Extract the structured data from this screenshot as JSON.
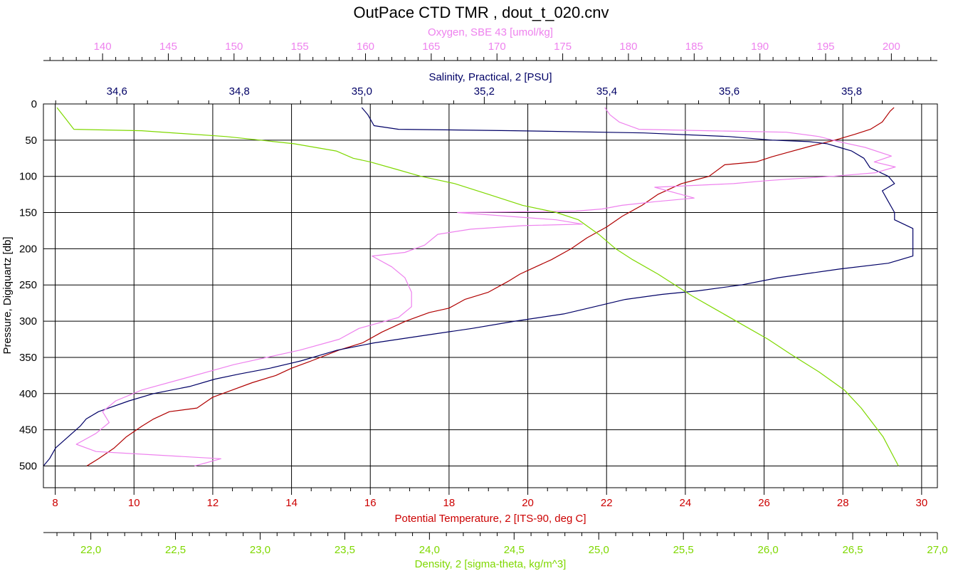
{
  "chart_data": {
    "type": "line",
    "title": "OutPace CTD TMR , dout_t_020.cnv",
    "grid": true,
    "y_axis": {
      "label": "Pressure, Digiquartz [db]",
      "range": [
        0,
        530
      ],
      "inverted": true,
      "ticks": [
        0,
        50,
        100,
        150,
        200,
        250,
        300,
        350,
        400,
        450,
        500
      ],
      "tick_labels": [
        "0",
        "50",
        "100",
        "150",
        "200",
        "250",
        "300",
        "350",
        "400",
        "450",
        "500"
      ]
    },
    "x_axes": [
      {
        "id": "oxygen",
        "position": "top-outer",
        "label": "Oxygen, SBE 43 [umol/kg]",
        "color": "#ee82ee",
        "range": [
          135.5,
          203.5
        ],
        "major_ticks": [
          140,
          145,
          150,
          155,
          160,
          165,
          170,
          175,
          180,
          185,
          190,
          195,
          200
        ],
        "tick_labels": [
          "140",
          "145",
          "150",
          "155",
          "160",
          "165",
          "170",
          "175",
          "180",
          "185",
          "190",
          "195",
          "200"
        ],
        "minor_step": 1
      },
      {
        "id": "salinity",
        "position": "top-inner",
        "label": "Salinity, Practical, 2 [PSU]",
        "color": "#000066",
        "range": [
          34.48,
          35.94
        ],
        "major_ticks": [
          34.6,
          34.8,
          35.0,
          35.2,
          35.4,
          35.6,
          35.8
        ],
        "tick_labels": [
          "34,6",
          "34,8",
          "35,0",
          "35,2",
          "35,4",
          "35,6",
          "35,8"
        ],
        "minor_step": 0.05
      },
      {
        "id": "temperature",
        "position": "bottom-inner",
        "label": "Potential Temperature, 2 [ITS-90, deg C]",
        "color": "#cc0000",
        "range": [
          7.7,
          30.4
        ],
        "major_ticks": [
          8,
          10,
          12,
          14,
          16,
          18,
          20,
          22,
          24,
          26,
          28,
          30
        ],
        "tick_labels": [
          "8",
          "10",
          "12",
          "14",
          "16",
          "18",
          "20",
          "22",
          "24",
          "26",
          "28",
          "30"
        ],
        "minor_step": 0.5
      },
      {
        "id": "density",
        "position": "bottom-outer",
        "label": "Density, 2 [sigma-theta, kg/m^3]",
        "color": "#7fd800",
        "range": [
          21.72,
          27.0
        ],
        "major_ticks": [
          22.0,
          22.5,
          23.0,
          23.5,
          24.0,
          24.5,
          25.0,
          25.5,
          26.0,
          26.5,
          27.0
        ],
        "tick_labels": [
          "22,0",
          "22,5",
          "23,0",
          "23,5",
          "24,0",
          "24,5",
          "25,0",
          "25,5",
          "26,0",
          "26,5",
          "27,0"
        ],
        "minor_step": 0.1
      }
    ],
    "series": [
      {
        "axis": "temperature",
        "color": "#b00000",
        "points": [
          [
            29.3,
            5
          ],
          [
            29.2,
            10
          ],
          [
            29.0,
            25
          ],
          [
            28.7,
            35
          ],
          [
            28.3,
            42
          ],
          [
            27.8,
            50
          ],
          [
            27.2,
            58
          ],
          [
            26.6,
            67
          ],
          [
            26.2,
            73
          ],
          [
            25.8,
            80
          ],
          [
            25.0,
            84
          ],
          [
            24.6,
            100
          ],
          [
            23.9,
            110
          ],
          [
            23.3,
            125
          ],
          [
            22.9,
            140
          ],
          [
            22.4,
            155
          ],
          [
            22.0,
            170
          ],
          [
            21.5,
            185
          ],
          [
            21.1,
            200
          ],
          [
            20.6,
            215
          ],
          [
            20.2,
            225
          ],
          [
            19.8,
            235
          ],
          [
            19.5,
            245
          ],
          [
            19.0,
            260
          ],
          [
            18.4,
            270
          ],
          [
            18.0,
            282
          ],
          [
            17.5,
            288
          ],
          [
            16.9,
            300
          ],
          [
            16.3,
            315
          ],
          [
            15.8,
            330
          ],
          [
            15.2,
            340
          ],
          [
            14.5,
            355
          ],
          [
            14.0,
            365
          ],
          [
            13.6,
            375
          ],
          [
            13.0,
            385
          ],
          [
            12.5,
            395
          ],
          [
            12.0,
            405
          ],
          [
            11.6,
            420
          ],
          [
            10.9,
            425
          ],
          [
            10.5,
            435
          ],
          [
            10.2,
            445
          ],
          [
            9.8,
            460
          ],
          [
            9.5,
            475
          ],
          [
            9.1,
            490
          ],
          [
            8.8,
            500
          ]
        ]
      },
      {
        "axis": "salinity",
        "color": "#000066",
        "points": [
          [
            35.0,
            5
          ],
          [
            35.01,
            15
          ],
          [
            35.02,
            30
          ],
          [
            35.06,
            35
          ],
          [
            35.25,
            37
          ],
          [
            35.46,
            40
          ],
          [
            35.6,
            45
          ],
          [
            35.67,
            50
          ],
          [
            35.73,
            52
          ],
          [
            35.76,
            55
          ],
          [
            35.78,
            60
          ],
          [
            35.8,
            65
          ],
          [
            35.82,
            75
          ],
          [
            35.83,
            88
          ],
          [
            35.86,
            100
          ],
          [
            35.87,
            110
          ],
          [
            35.85,
            120
          ],
          [
            35.86,
            135
          ],
          [
            35.87,
            150
          ],
          [
            35.87,
            160
          ],
          [
            35.9,
            172
          ],
          [
            35.9,
            190
          ],
          [
            35.9,
            210
          ],
          [
            35.86,
            220
          ],
          [
            35.78,
            228
          ],
          [
            35.68,
            240
          ],
          [
            35.62,
            250
          ],
          [
            35.55,
            258
          ],
          [
            35.49,
            263
          ],
          [
            35.43,
            270
          ],
          [
            35.38,
            280
          ],
          [
            35.33,
            290
          ],
          [
            35.25,
            300
          ],
          [
            35.18,
            310
          ],
          [
            35.1,
            320
          ],
          [
            35.02,
            330
          ],
          [
            34.96,
            340
          ],
          [
            34.92,
            350
          ],
          [
            34.9,
            355
          ],
          [
            34.85,
            365
          ],
          [
            34.8,
            373
          ],
          [
            34.76,
            380
          ],
          [
            34.72,
            390
          ],
          [
            34.66,
            400
          ],
          [
            34.62,
            410
          ],
          [
            34.57,
            425
          ],
          [
            34.55,
            435
          ],
          [
            34.54,
            445
          ],
          [
            34.52,
            460
          ],
          [
            34.5,
            475
          ],
          [
            34.49,
            490
          ],
          [
            34.48,
            500
          ]
        ]
      },
      {
        "axis": "oxygen",
        "color": "#ee82ee",
        "points": [
          [
            178.2,
            5
          ],
          [
            178.6,
            15
          ],
          [
            179.3,
            25
          ],
          [
            180.8,
            35
          ],
          [
            186.0,
            37
          ],
          [
            192.0,
            39
          ],
          [
            194.5,
            45
          ],
          [
            196.0,
            52
          ],
          [
            198.0,
            60
          ],
          [
            200.0,
            72
          ],
          [
            198.7,
            80
          ],
          [
            200.3,
            87
          ],
          [
            198.8,
            95
          ],
          [
            195.5,
            100
          ],
          [
            192.0,
            104
          ],
          [
            190.5,
            106
          ],
          [
            188.0,
            110
          ],
          [
            182.0,
            115
          ],
          [
            184.0,
            125
          ],
          [
            185.0,
            130
          ],
          [
            182.0,
            135
          ],
          [
            179.5,
            140
          ],
          [
            178.0,
            145
          ],
          [
            176.0,
            148
          ],
          [
            167.0,
            150
          ],
          [
            174.5,
            160
          ],
          [
            176.5,
            166
          ],
          [
            172.0,
            168
          ],
          [
            168.0,
            173
          ],
          [
            165.5,
            180
          ],
          [
            164.5,
            195
          ],
          [
            163.0,
            205
          ],
          [
            160.5,
            210
          ],
          [
            162.0,
            225
          ],
          [
            163.0,
            240
          ],
          [
            163.5,
            260
          ],
          [
            163.5,
            280
          ],
          [
            162.5,
            295
          ],
          [
            159.5,
            310
          ],
          [
            158.0,
            325
          ],
          [
            155.0,
            340
          ],
          [
            150.0,
            360
          ],
          [
            146.0,
            380
          ],
          [
            143.0,
            395
          ],
          [
            141.0,
            410
          ],
          [
            140.0,
            425
          ],
          [
            140.5,
            440
          ],
          [
            139.5,
            455
          ],
          [
            138.0,
            470
          ],
          [
            139.5,
            480
          ],
          [
            149.0,
            490
          ],
          [
            147.0,
            500
          ]
        ]
      },
      {
        "axis": "density",
        "color": "#7fd800",
        "points": [
          [
            21.8,
            5
          ],
          [
            21.85,
            20
          ],
          [
            21.9,
            35
          ],
          [
            22.3,
            37
          ],
          [
            22.8,
            45
          ],
          [
            23.0,
            50
          ],
          [
            23.2,
            55
          ],
          [
            23.45,
            65
          ],
          [
            23.55,
            75
          ],
          [
            23.65,
            80
          ],
          [
            23.8,
            90
          ],
          [
            23.95,
            100
          ],
          [
            24.15,
            110
          ],
          [
            24.35,
            125
          ],
          [
            24.55,
            140
          ],
          [
            24.75,
            150
          ],
          [
            24.88,
            160
          ],
          [
            25.0,
            180
          ],
          [
            25.1,
            200
          ],
          [
            25.2,
            215
          ],
          [
            25.35,
            235
          ],
          [
            25.45,
            250
          ],
          [
            25.55,
            265
          ],
          [
            25.7,
            285
          ],
          [
            25.85,
            305
          ],
          [
            26.0,
            325
          ],
          [
            26.13,
            345
          ],
          [
            26.3,
            370
          ],
          [
            26.45,
            395
          ],
          [
            26.55,
            420
          ],
          [
            26.68,
            460
          ],
          [
            26.77,
            500
          ]
        ]
      }
    ]
  }
}
